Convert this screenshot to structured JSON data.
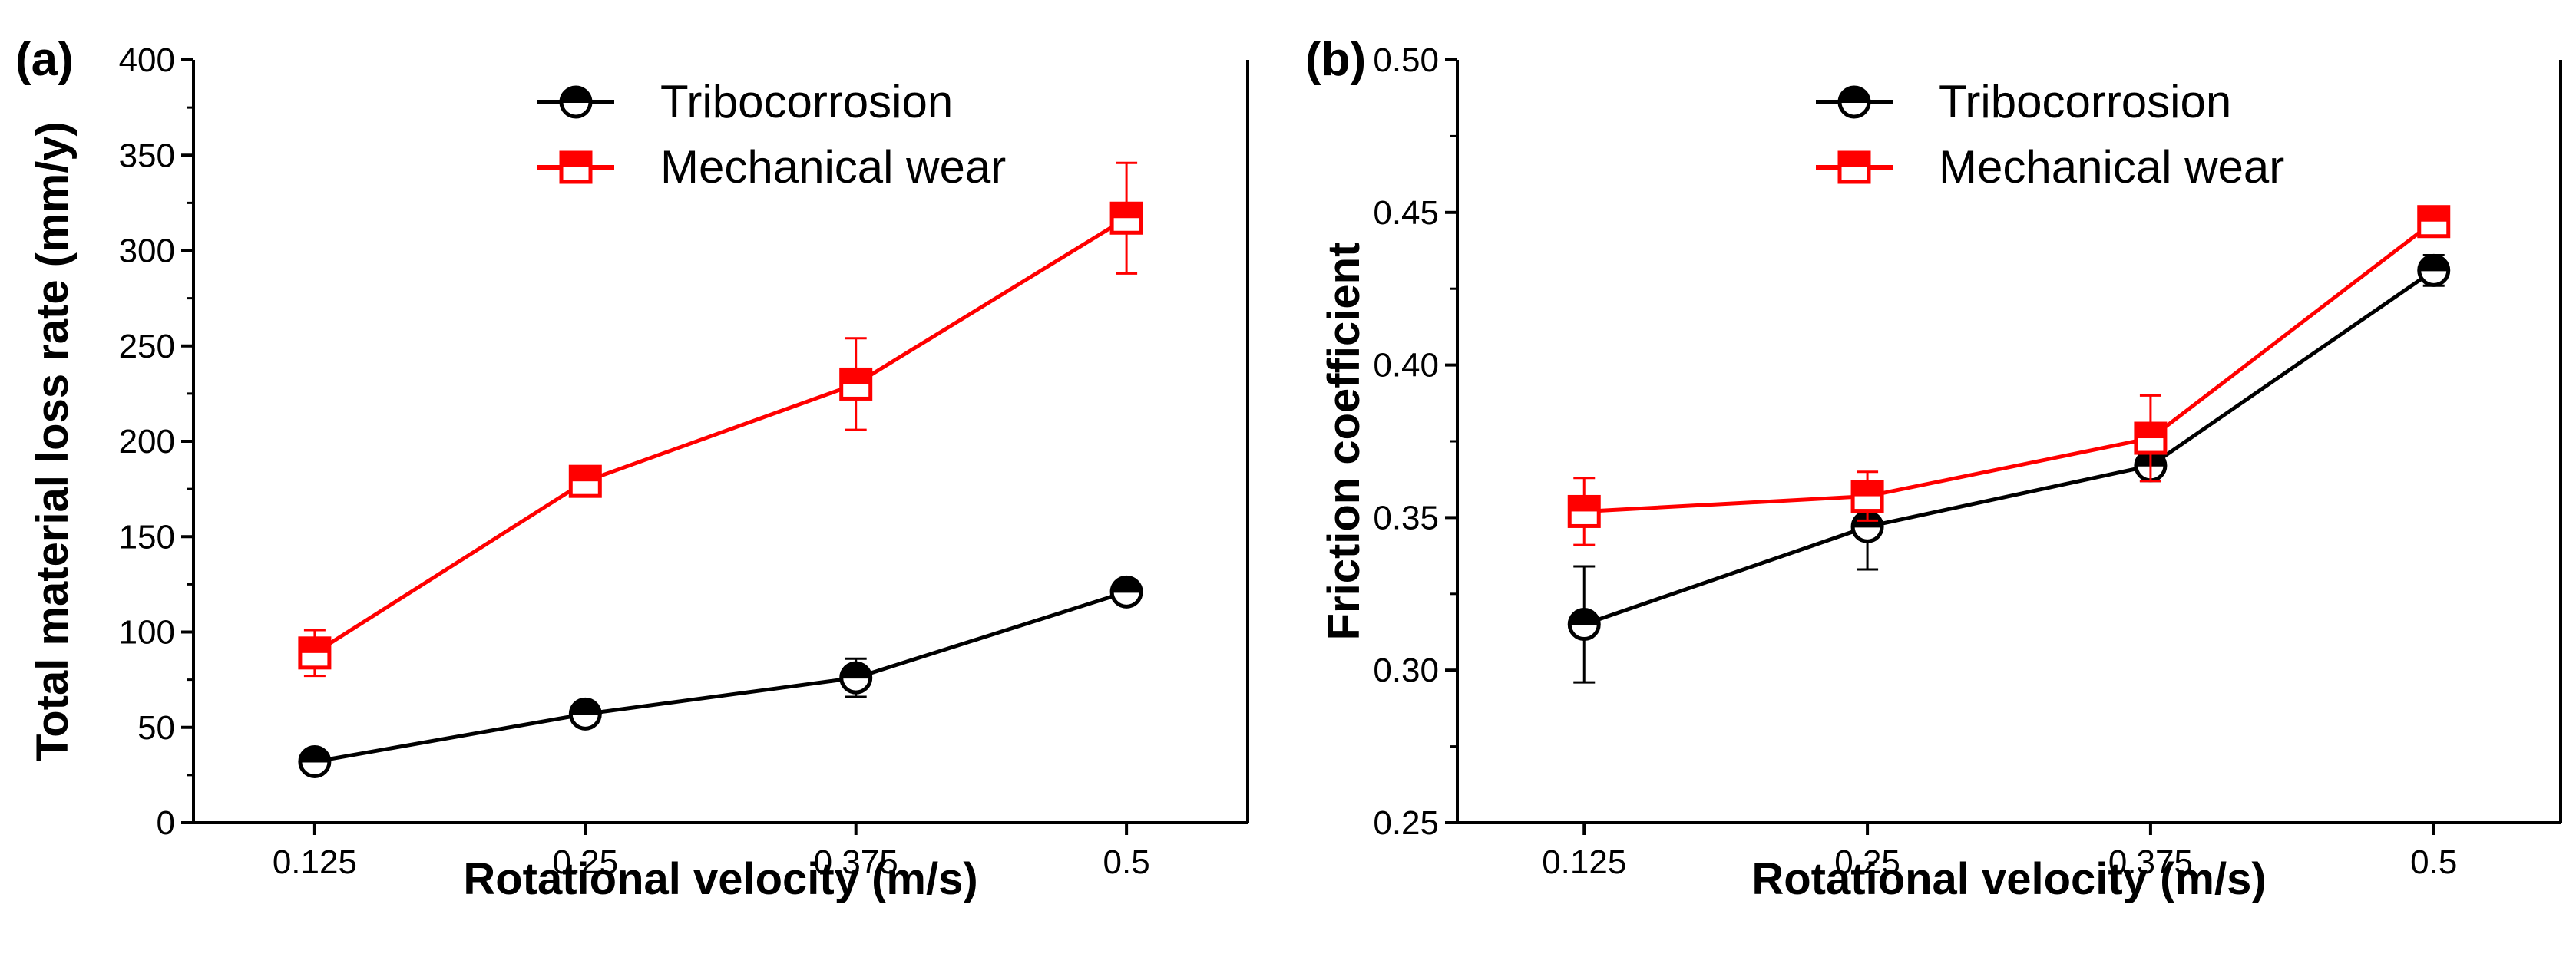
{
  "chart_data": [
    {
      "panel_label": "(a)",
      "type": "line",
      "xlabel": "Rotational velocity (m/s)",
      "ylabel": "Total material loss rate (mm/y)",
      "x_tick_labels": [
        "0.125",
        "0.25",
        "0.375",
        "0.5"
      ],
      "x": [
        0.125,
        0.25,
        0.375,
        0.5
      ],
      "y_ticks": [
        "0",
        "50",
        "100",
        "150",
        "200",
        "250",
        "300",
        "350",
        "400"
      ],
      "ylim": [
        0,
        400
      ],
      "grid": false,
      "legend_position": "top-center",
      "series": [
        {
          "name": "Tribocorrosion",
          "color": "#000000",
          "marker": "half-filled-circle",
          "values": [
            32,
            57,
            76,
            121
          ],
          "errors": [
            5,
            5,
            10,
            6
          ]
        },
        {
          "name": "Mechanical wear",
          "color": "#ff0000",
          "marker": "half-filled-square",
          "values": [
            89,
            179,
            230,
            317
          ],
          "errors": [
            12,
            6,
            24,
            29
          ]
        }
      ]
    },
    {
      "panel_label": "(b)",
      "type": "line",
      "xlabel": "Rotational velocity (m/s)",
      "ylabel": "Friction coefficient",
      "x_tick_labels": [
        "0.125",
        "0.25",
        "0.375",
        "0.5"
      ],
      "x": [
        0.125,
        0.25,
        0.375,
        0.5
      ],
      "y_ticks": [
        "0.25",
        "0.30",
        "0.35",
        "0.40",
        "0.45",
        "0.50"
      ],
      "ylim": [
        0.25,
        0.5
      ],
      "grid": false,
      "legend_position": "top-center",
      "series": [
        {
          "name": "Tribocorrosion",
          "color": "#000000",
          "marker": "half-filled-circle",
          "values": [
            0.315,
            0.347,
            0.367,
            0.431
          ],
          "errors": [
            0.019,
            0.014,
            0.005,
            0.005
          ]
        },
        {
          "name": "Mechanical wear",
          "color": "#ff0000",
          "marker": "half-filled-square",
          "values": [
            0.352,
            0.357,
            0.376,
            0.447
          ],
          "errors": [
            0.011,
            0.008,
            0.014,
            0.004
          ]
        }
      ]
    }
  ]
}
